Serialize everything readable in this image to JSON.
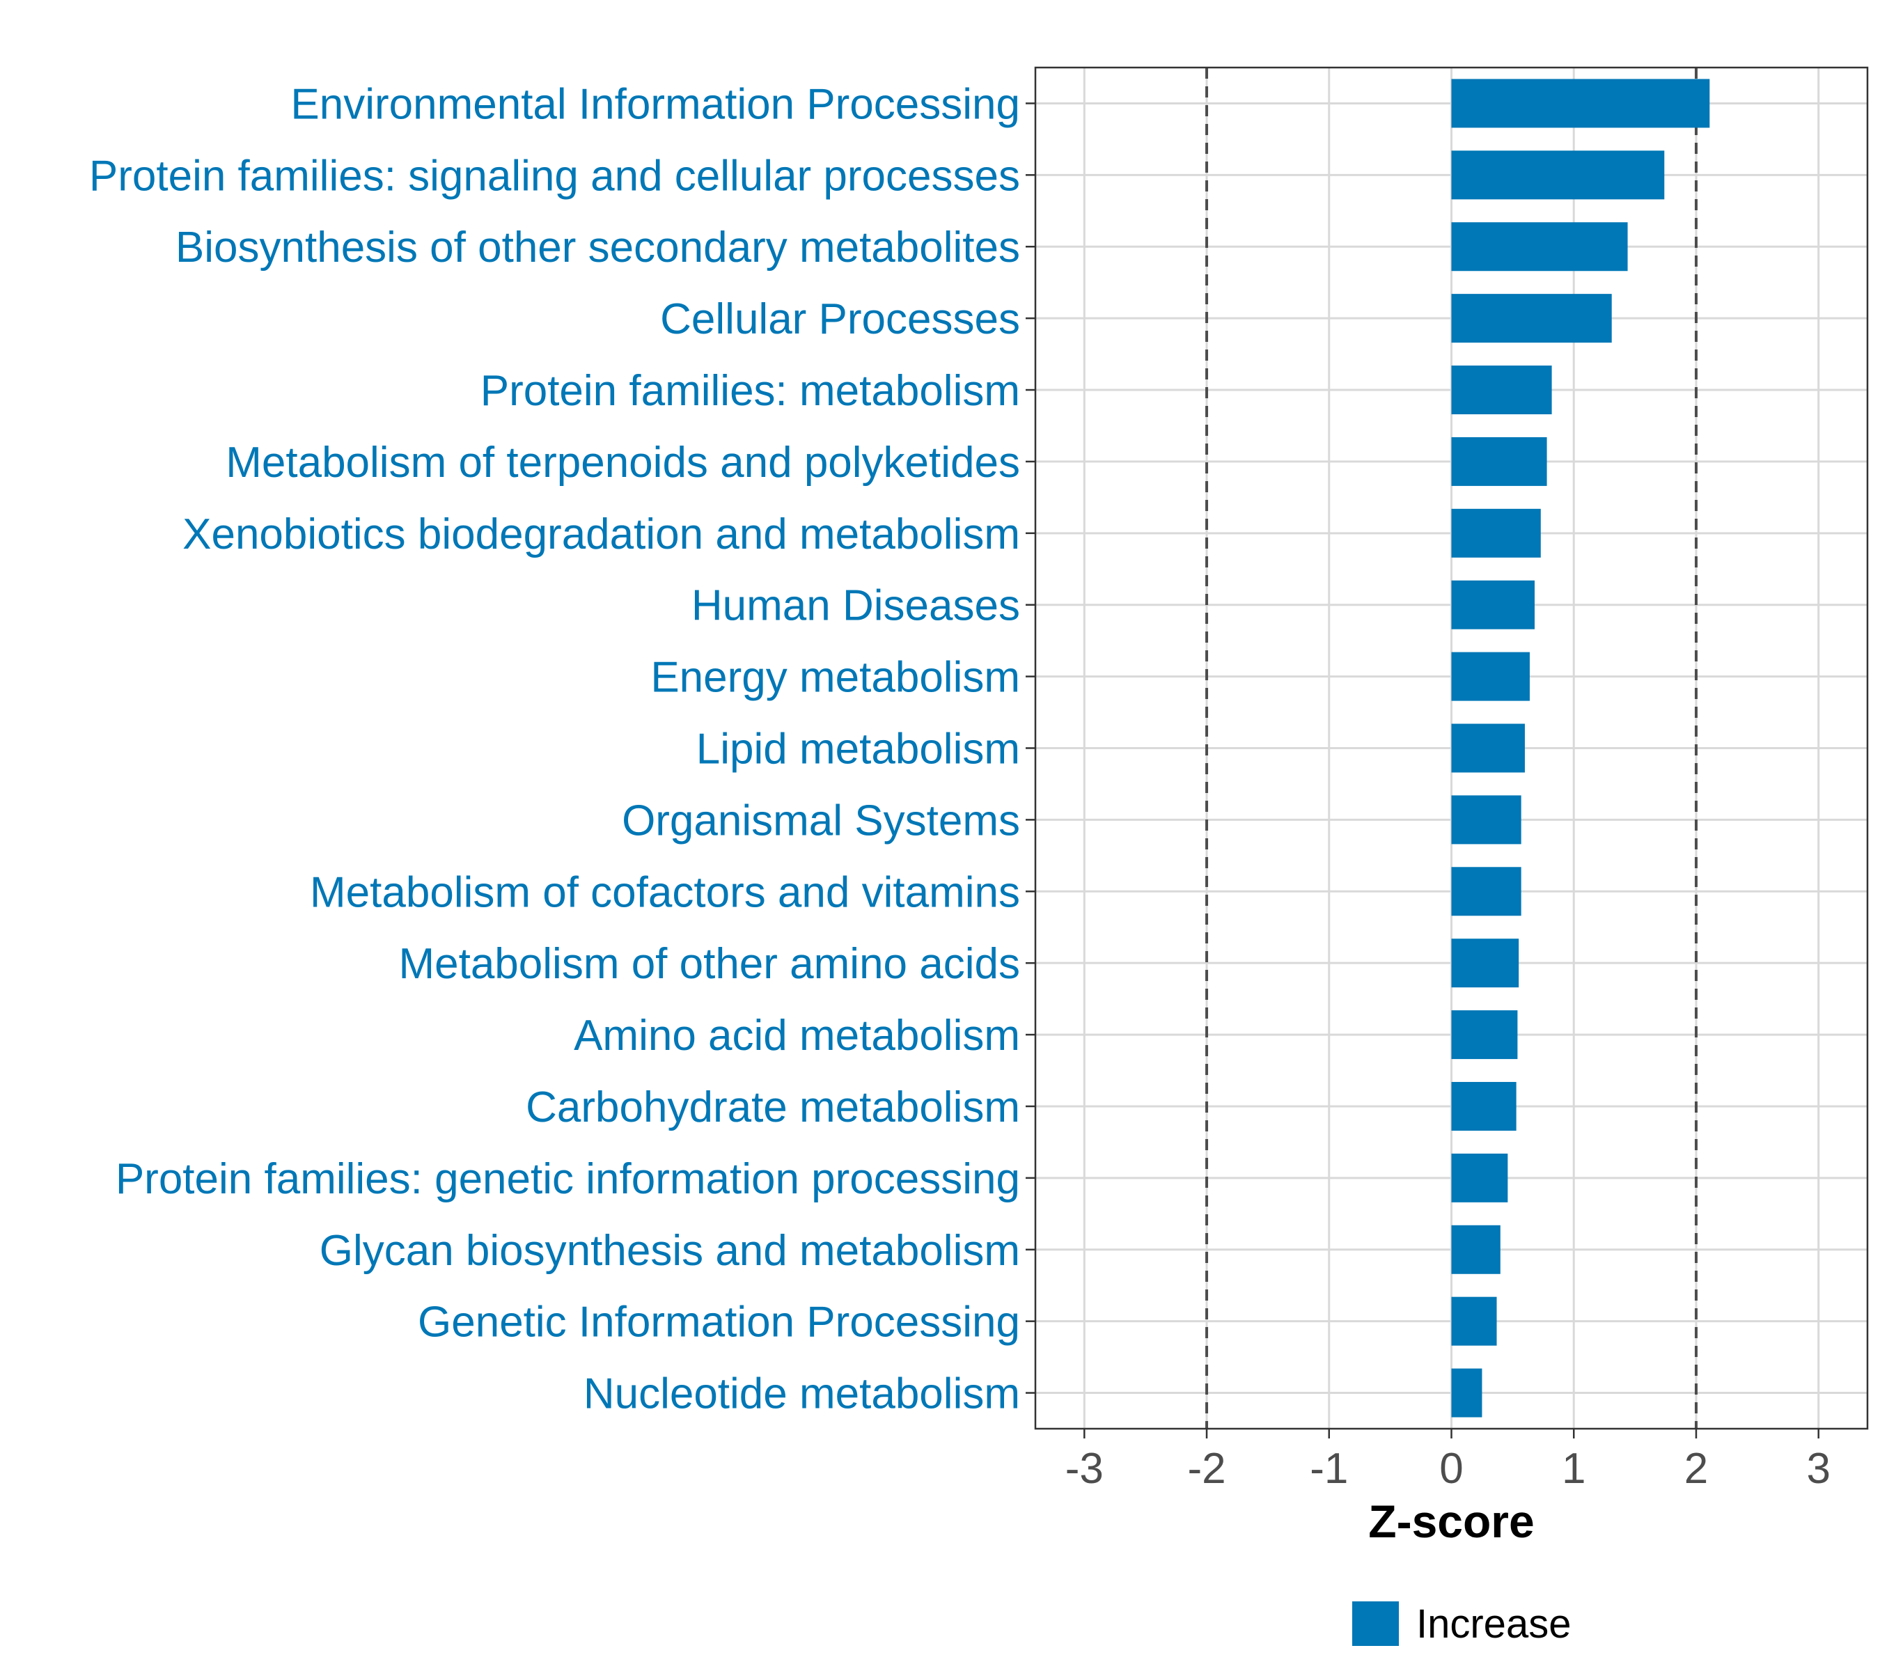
{
  "chart_data": {
    "type": "bar",
    "orientation": "horizontal",
    "categories": [
      "Environmental Information Processing",
      "Protein families: signaling and cellular processes",
      "Biosynthesis of other secondary metabolites",
      "Cellular Processes",
      "Protein families: metabolism",
      "Metabolism of terpenoids and polyketides",
      "Xenobiotics biodegradation and metabolism",
      "Human Diseases",
      "Energy metabolism",
      "Lipid metabolism",
      "Organismal Systems",
      "Metabolism of cofactors and vitamins",
      "Metabolism of other amino acids",
      "Amino acid metabolism",
      "Carbohydrate metabolism",
      "Protein families: genetic information processing",
      "Glycan biosynthesis and metabolism",
      "Genetic Information Processing",
      "Nucleotide metabolism"
    ],
    "series": [
      {
        "name": "Increase",
        "color": "#0077b6",
        "values": [
          2.11,
          1.74,
          1.44,
          1.31,
          0.82,
          0.78,
          0.73,
          0.68,
          0.64,
          0.6,
          0.57,
          0.57,
          0.55,
          0.54,
          0.53,
          0.46,
          0.4,
          0.37,
          0.25
        ]
      }
    ],
    "xlabel": "Z-score",
    "ylabel": "",
    "xlim": [
      -3.4,
      3.4
    ],
    "xticks": [
      -3,
      -2,
      -1,
      0,
      1,
      2,
      3
    ],
    "xtick_labels": [
      "-3",
      "-2",
      "-1",
      "0",
      "1",
      "2",
      "3"
    ],
    "reference_lines": [
      -2,
      2
    ],
    "grid": true,
    "legend_position": "bottom",
    "legend_label": "Increase",
    "colors": {
      "bar": "#0077b6",
      "label": "#0077b6",
      "grid": "#d9d9d9",
      "reference_line": "#4d4d4d"
    }
  }
}
